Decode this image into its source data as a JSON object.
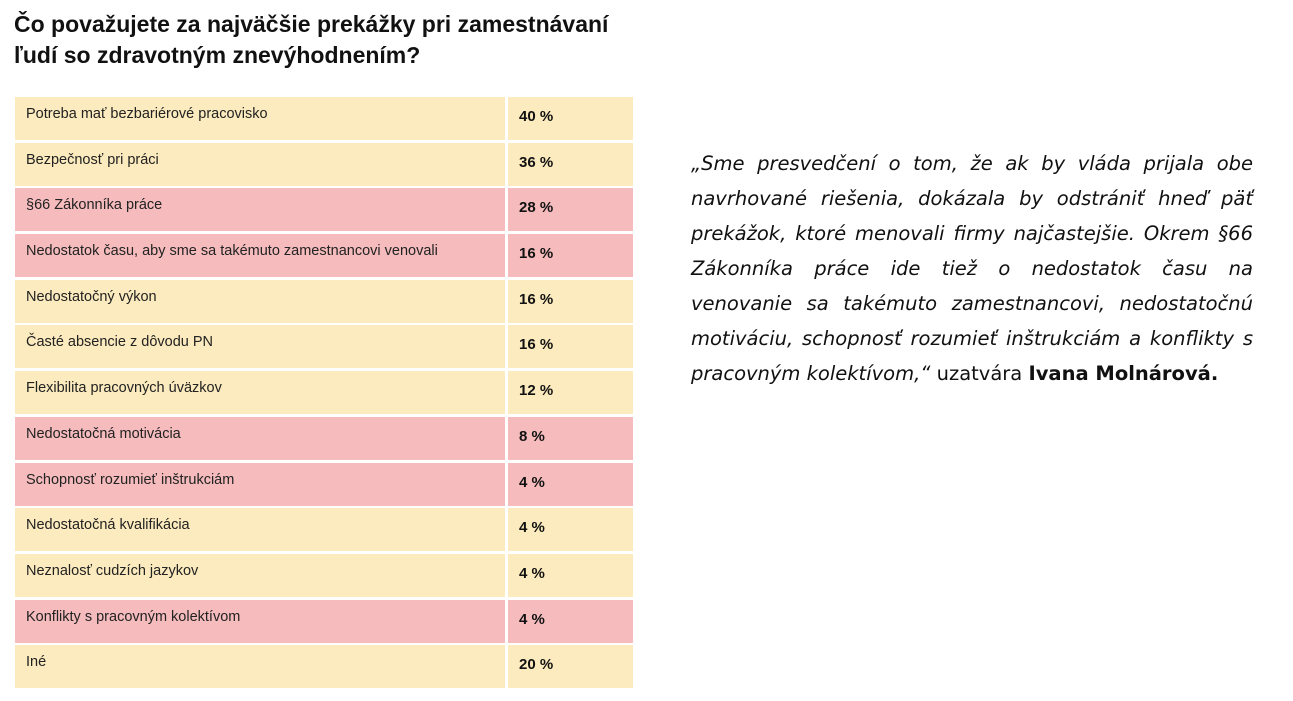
{
  "title": "Čo považujete za najväčšie prekážky pri zamestnávaní ľudí so zdravotným znevýhodnením?",
  "colors": {
    "row_yellow": "#fcebbe",
    "row_pink": "#f6bcbd"
  },
  "table": {
    "rows": [
      {
        "label": "Potreba mať bezbariérové pracovisko",
        "value": "40 %",
        "color": "yellow"
      },
      {
        "label": "Bezpečnosť pri práci",
        "value": "36 %",
        "color": "yellow"
      },
      {
        "label": "§66 Zákonníka práce",
        "value": "28 %",
        "color": "pink"
      },
      {
        "label": "Nedostatok času, aby sme sa takémuto zamestnancovi venovali",
        "value": "16 %",
        "color": "pink"
      },
      {
        "label": "Nedostatočný výkon",
        "value": "16 %",
        "color": "yellow"
      },
      {
        "label": "Časté absencie z dôvodu PN",
        "value": "16 %",
        "color": "yellow"
      },
      {
        "label": "Flexibilita pracovných úväzkov",
        "value": "12 %",
        "color": "yellow"
      },
      {
        "label": "Nedostatočná motivácia",
        "value": "8 %",
        "color": "pink"
      },
      {
        "label": "Schopnosť rozumieť inštrukciám",
        "value": "4 %",
        "color": "pink"
      },
      {
        "label": "Nedostatočná kvalifikácia",
        "value": "4 %",
        "color": "yellow"
      },
      {
        "label": "Neznalosť cudzích jazykov",
        "value": "4 %",
        "color": "yellow"
      },
      {
        "label": "Konflikty s pracovným kolektívom",
        "value": "4 %",
        "color": "pink"
      },
      {
        "label": "Iné",
        "value": "20 %",
        "color": "yellow"
      }
    ]
  },
  "quote": {
    "text": "„Sme presvedčení o tom, že ak by vláda prijala obe navrhované riešenia, dokázala by odstrániť hneď päť prekážok, ktoré menovali firmy najčastejšie. Okrem §66 Zákonníka práce ide tiež o nedostatok času na venovanie sa takémuto zamestnancovi, nedostatočnú motiváciu, schopnosť rozumieť inštrukciám a konflikty s pracovným kolektívom,“",
    "attribution": "uzatvára",
    "author": "Ivana Molnárová."
  }
}
